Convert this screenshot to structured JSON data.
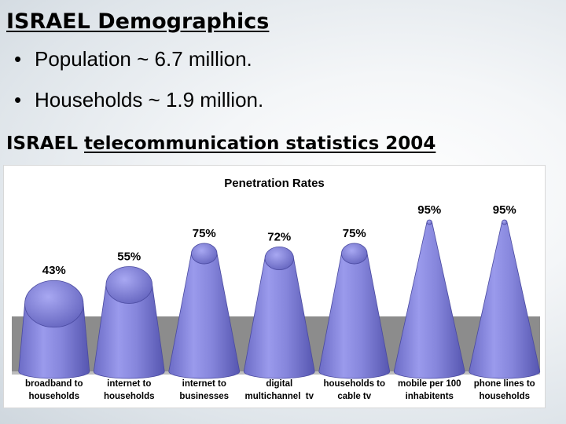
{
  "slide": {
    "title": "ISRAEL Demographics",
    "bullets": [
      "Population ~ 6.7 million.",
      "Households ~ 1.9 million."
    ],
    "section_title_prefix": "ISRAEL",
    "section_title_rest": "telecommunication statistics 2004"
  },
  "colors": {
    "cone": "#8a8ae0",
    "floor": "#8c8c8c"
  },
  "chart_data": {
    "type": "bar",
    "title": "Penetration Rates",
    "xlabel": "",
    "ylabel": "",
    "ylim": [
      0,
      100
    ],
    "categories": [
      [
        "broadband to",
        "households"
      ],
      [
        "internet to",
        "households"
      ],
      [
        "internet to",
        "businesses"
      ],
      [
        "digital",
        "multichannel  tv"
      ],
      [
        "households to",
        "cable tv"
      ],
      [
        "mobile per 100",
        "inhabitents"
      ],
      [
        "phone lines to",
        "households"
      ]
    ],
    "values": [
      43,
      55,
      75,
      72,
      75,
      95,
      95
    ],
    "value_labels": [
      "43%",
      "55%",
      "75%",
      "72%",
      "75%",
      "95%",
      "95%"
    ]
  }
}
